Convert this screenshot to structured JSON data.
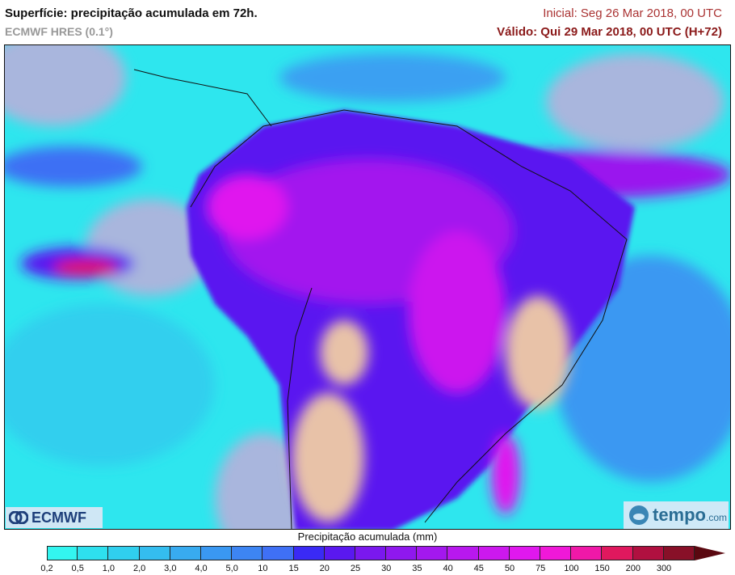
{
  "header": {
    "title": "Superfície: precipitação acumulada em 72h.",
    "model": "ECMWF HRES (0.1°)",
    "initial": "Inicial: Seg 26 Mar 2018, 00 UTC",
    "valid": "Válido: Qui 29 Mar 2018, 00 UTC (H+72)"
  },
  "logos": {
    "left": "ECMWF",
    "right_main": "tempo",
    "right_suffix": ".com"
  },
  "legend": {
    "title": "Precipitação acumulada (mm)",
    "ticks": [
      "0,2",
      "0,5",
      "1,0",
      "2,0",
      "3,0",
      "4,0",
      "5,0",
      "10",
      "15",
      "20",
      "25",
      "30",
      "35",
      "40",
      "45",
      "50",
      "75",
      "100",
      "150",
      "200",
      "300"
    ],
    "colors": [
      "#33f5f0",
      "#2ee0ee",
      "#30cfee",
      "#34bdef",
      "#38abf0",
      "#3a98f2",
      "#3d85f3",
      "#3f70f5",
      "#3a2af5",
      "#5a18f0",
      "#7a18ee",
      "#8f18ee",
      "#a318ee",
      "#b818ee",
      "#cc18ee",
      "#e018ee",
      "#f018d8",
      "#f018a8",
      "#e0185e",
      "#b01040",
      "#881028"
    ],
    "overflow_color": "#5a0810"
  },
  "map": {
    "ocean_dry_color": "#a9b6dd",
    "land_dry_color": "#e8c2a8",
    "border_color": "#111111"
  }
}
